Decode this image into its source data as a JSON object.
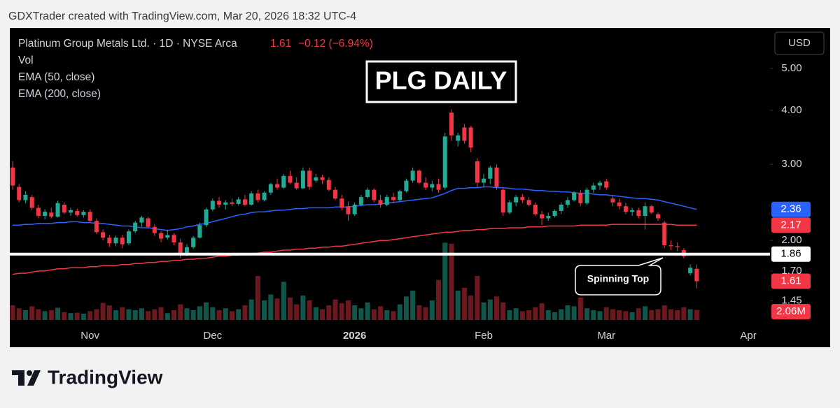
{
  "attribution": "GDXTrader created with TradingView.com, Mar 20, 2026 18:32 UTC-4",
  "brand": "TradingView",
  "chart_data": {
    "type": "candlestick",
    "title": "PLG DAILY",
    "symbol": "Platinum Group Metals Ltd. · 1D · NYSE Arca",
    "change": "−0.12 (−6.94%)",
    "currency": "USD",
    "annotation": "Spinning Top",
    "log_scale": true,
    "grid": false,
    "up_color": "#22ab94",
    "down_color": "#f23645",
    "ylim": [
      1.31,
      6.2
    ],
    "yticks": [
      {
        "value": 5,
        "label": "5.00"
      },
      {
        "value": 4,
        "label": "4.00"
      },
      {
        "value": 3,
        "label": "3.00"
      },
      {
        "value": 2,
        "label": "2.00"
      },
      {
        "value": 1.7,
        "label": "1.70"
      },
      {
        "value": 1.45,
        "label": "1.45"
      }
    ],
    "categories": [
      null,
      null,
      null,
      null,
      null,
      null,
      null,
      null,
      null,
      null,
      null,
      null,
      "Nov",
      null,
      null,
      null,
      null,
      null,
      null,
      null,
      null,
      null,
      null,
      null,
      null,
      null,
      null,
      null,
      null,
      null,
      null,
      "Dec",
      null,
      null,
      null,
      null,
      null,
      null,
      null,
      null,
      null,
      null,
      null,
      null,
      null,
      null,
      null,
      null,
      null,
      null,
      null,
      null,
      null,
      "2026",
      null,
      null,
      null,
      null,
      null,
      null,
      null,
      null,
      null,
      null,
      null,
      null,
      null,
      null,
      null,
      null,
      null,
      null,
      null,
      "Feb",
      null,
      null,
      null,
      null,
      null,
      null,
      null,
      null,
      null,
      null,
      null,
      null,
      null,
      null,
      null,
      null,
      null,
      null,
      "Mar",
      null,
      null,
      null,
      null,
      null,
      null,
      null,
      null,
      null,
      null,
      null,
      null,
      null,
      null,
      null,
      null,
      null,
      null,
      null,
      null,
      null,
      "Apr"
    ],
    "open": [
      2.95,
      2.66,
      2.48,
      2.52,
      2.38,
      2.28,
      2.32,
      2.27,
      2.42,
      2.32,
      2.34,
      2.29,
      2.33,
      2.22,
      2.09,
      2.03,
      1.97,
      2.03,
      1.97,
      2.1,
      2.2,
      2.25,
      2.15,
      2.08,
      2.03,
      2.06,
      1.98,
      1.86,
      1.93,
      2.03,
      2.17,
      2.36,
      2.47,
      2.42,
      2.45,
      2.43,
      2.49,
      2.42,
      2.57,
      2.48,
      2.58,
      2.7,
      2.65,
      2.82,
      2.72,
      2.64,
      2.9,
      2.75,
      2.8,
      2.76,
      2.62,
      2.5,
      2.4,
      2.3,
      2.42,
      2.52,
      2.62,
      2.48,
      2.42,
      2.52,
      2.48,
      2.6,
      2.75,
      2.9,
      2.72,
      2.65,
      2.7,
      2.65,
      3.95,
      3.4,
      3.65,
      3.65,
      3.05,
      2.72,
      2.78,
      2.95,
      2.62,
      2.32,
      2.45,
      2.52,
      2.48,
      2.42,
      2.3,
      2.25,
      2.28,
      2.34,
      2.42,
      2.48,
      2.58,
      2.44,
      2.62,
      2.68,
      2.74,
      2.5,
      2.45,
      2.4,
      2.33,
      2.35,
      2.28,
      2.4,
      2.3,
      2.2,
      1.95,
      1.94,
      1.9,
      1.68,
      1.72,
      null,
      null,
      null,
      null,
      null,
      null,
      null,
      null
    ],
    "high": [
      3.05,
      2.7,
      2.6,
      2.55,
      2.42,
      2.36,
      2.38,
      2.47,
      2.45,
      2.38,
      2.37,
      2.35,
      2.36,
      2.25,
      2.12,
      2.06,
      2.05,
      2.06,
      2.12,
      2.22,
      2.28,
      2.27,
      2.18,
      2.1,
      2.12,
      2.08,
      2.02,
      1.96,
      2.05,
      2.2,
      2.38,
      2.5,
      2.52,
      2.48,
      2.5,
      2.52,
      2.55,
      2.6,
      2.62,
      2.6,
      2.72,
      2.78,
      2.85,
      2.9,
      2.8,
      2.95,
      2.95,
      2.85,
      2.84,
      2.8,
      2.66,
      2.55,
      2.46,
      2.45,
      2.55,
      2.65,
      2.64,
      2.55,
      2.55,
      2.58,
      2.62,
      2.78,
      2.95,
      2.92,
      2.8,
      2.75,
      2.78,
      3.55,
      4.02,
      3.55,
      3.72,
      3.68,
      3.1,
      2.85,
      2.98,
      3.0,
      2.65,
      2.48,
      2.55,
      2.56,
      2.52,
      2.45,
      2.34,
      2.32,
      2.36,
      2.45,
      2.52,
      2.6,
      2.62,
      2.65,
      2.72,
      2.75,
      2.78,
      2.55,
      2.5,
      2.44,
      2.38,
      2.38,
      2.45,
      2.42,
      2.32,
      2.22,
      2.0,
      1.98,
      1.92,
      1.76,
      1.76,
      null,
      null,
      null,
      null,
      null,
      null,
      null,
      null
    ],
    "low": [
      2.62,
      2.45,
      2.44,
      2.35,
      2.25,
      2.24,
      2.25,
      2.26,
      2.3,
      2.28,
      2.27,
      2.26,
      2.2,
      2.07,
      2.0,
      1.93,
      1.94,
      1.92,
      1.95,
      2.08,
      2.15,
      2.13,
      2.05,
      1.98,
      2.01,
      1.95,
      1.82,
      1.84,
      1.91,
      2.02,
      2.15,
      2.34,
      2.38,
      2.36,
      2.4,
      2.41,
      2.4,
      2.41,
      2.45,
      2.46,
      2.55,
      2.62,
      2.63,
      2.7,
      2.62,
      2.63,
      2.62,
      2.72,
      2.7,
      2.6,
      2.48,
      2.35,
      2.22,
      2.28,
      2.4,
      2.5,
      2.45,
      2.38,
      2.4,
      2.44,
      2.46,
      2.58,
      2.72,
      2.7,
      2.62,
      2.6,
      2.58,
      2.62,
      3.4,
      3.3,
      3.35,
      3.2,
      2.65,
      2.65,
      2.7,
      2.62,
      2.28,
      2.3,
      2.4,
      2.44,
      2.4,
      2.28,
      2.17,
      2.22,
      2.26,
      2.3,
      2.38,
      2.46,
      2.4,
      2.42,
      2.58,
      2.62,
      2.62,
      2.4,
      2.36,
      2.3,
      2.28,
      2.25,
      2.12,
      2.3,
      2.22,
      1.92,
      1.9,
      1.89,
      1.82,
      1.66,
      1.55,
      null,
      null,
      null,
      null,
      null,
      null,
      null,
      null
    ],
    "close": [
      2.68,
      2.48,
      2.55,
      2.38,
      2.28,
      2.33,
      2.27,
      2.44,
      2.32,
      2.35,
      2.29,
      2.33,
      2.22,
      2.09,
      2.03,
      1.97,
      2.03,
      1.96,
      2.1,
      2.2,
      2.26,
      2.15,
      2.08,
      2.02,
      2.06,
      1.98,
      1.86,
      1.93,
      2.03,
      2.17,
      2.36,
      2.47,
      2.42,
      2.45,
      2.43,
      2.49,
      2.42,
      2.57,
      2.48,
      2.58,
      2.7,
      2.65,
      2.82,
      2.72,
      2.64,
      2.9,
      2.66,
      2.8,
      2.76,
      2.62,
      2.5,
      2.38,
      2.3,
      2.42,
      2.52,
      2.62,
      2.48,
      2.42,
      2.52,
      2.48,
      2.6,
      2.75,
      2.9,
      2.72,
      2.65,
      2.7,
      2.62,
      3.48,
      3.5,
      3.5,
      3.4,
      3.28,
      2.72,
      2.78,
      2.95,
      2.66,
      2.32,
      2.45,
      2.52,
      2.48,
      2.42,
      2.3,
      2.25,
      2.28,
      2.34,
      2.42,
      2.48,
      2.58,
      2.44,
      2.62,
      2.68,
      2.72,
      2.65,
      2.45,
      2.4,
      2.33,
      2.35,
      2.28,
      2.4,
      2.32,
      2.25,
      1.95,
      1.94,
      1.93,
      1.84,
      1.73,
      1.61,
      null,
      null,
      null,
      null,
      null,
      null,
      null,
      null
    ],
    "volume": {
      "name": "Vol",
      "color": "#f23645",
      "values": [
        3000000,
        2400000,
        2000000,
        2800000,
        2200000,
        1800000,
        2000000,
        2500000,
        1600000,
        1400000,
        1500000,
        1300000,
        1800000,
        2200000,
        3500000,
        3000000,
        2000000,
        2600000,
        2200000,
        2000000,
        2400000,
        1800000,
        2200000,
        2600000,
        1400000,
        2000000,
        3200000,
        2400000,
        2000000,
        2800000,
        3600000,
        2600000,
        2000000,
        2400000,
        1800000,
        2200000,
        3000000,
        4200000,
        9000000,
        4000000,
        5200000,
        4400000,
        7800000,
        4600000,
        3200000,
        5000000,
        4000000,
        2600000,
        2200000,
        3000000,
        4200000,
        3400000,
        4000000,
        3000000,
        2400000,
        3600000,
        2200000,
        2800000,
        2000000,
        1800000,
        3200000,
        4800000,
        6000000,
        3000000,
        2600000,
        4000000,
        8200000,
        15800000,
        15600000,
        6000000,
        6600000,
        5000000,
        9000000,
        3600000,
        4200000,
        4800000,
        3600000,
        2000000,
        2400000,
        1800000,
        2000000,
        2600000,
        3400000,
        2000000,
        1600000,
        2200000,
        3000000,
        2800000,
        4600000,
        2400000,
        2000000,
        1800000,
        2600000,
        2200000,
        2000000,
        1800000,
        1600000,
        2400000,
        2800000,
        2000000,
        2200000,
        3000000,
        2200000,
        2000000,
        2600000,
        2200000,
        2060000,
        null,
        null,
        null,
        null,
        null,
        null,
        null,
        null
      ],
      "value_labels": [
        null,
        null,
        null,
        null,
        null,
        null,
        null,
        null,
        null,
        null,
        null,
        null,
        null,
        null,
        null,
        null,
        null,
        null,
        null,
        null,
        null,
        null,
        null,
        null,
        null,
        null,
        null,
        null,
        null,
        null,
        null,
        null,
        null,
        null,
        null,
        null,
        null,
        null,
        null,
        null,
        null,
        null,
        null,
        null,
        null,
        null,
        null,
        null,
        null,
        null,
        null,
        null,
        null,
        null,
        null,
        null,
        null,
        null,
        null,
        null,
        null,
        null,
        null,
        null,
        null,
        null,
        null,
        null,
        null,
        null,
        null,
        null,
        null,
        null,
        null,
        null,
        null,
        null,
        null,
        null,
        null,
        null,
        null,
        null,
        null,
        null,
        null,
        null,
        null,
        null,
        null,
        null,
        null,
        null,
        null,
        null,
        null,
        null,
        null,
        null,
        null,
        null,
        null,
        null,
        null,
        null,
        "2.06M",
        null,
        null,
        null,
        null,
        null,
        null,
        null,
        null
      ]
    },
    "series": [
      {
        "name": "EMA (50, close)",
        "color": "#2962ff",
        "values": [
          2.17,
          2.17,
          2.18,
          2.18,
          2.19,
          2.19,
          2.19,
          2.2,
          2.2,
          2.21,
          2.21,
          2.2,
          2.2,
          2.19,
          2.19,
          2.18,
          2.17,
          2.16,
          2.16,
          2.15,
          2.14,
          2.14,
          2.13,
          2.12,
          2.11,
          2.12,
          2.13,
          2.15,
          2.16,
          2.18,
          2.19,
          2.21,
          2.23,
          2.25,
          2.27,
          2.29,
          2.3,
          2.32,
          2.33,
          2.33,
          2.34,
          2.35,
          2.35,
          2.36,
          2.37,
          2.37,
          2.38,
          2.38,
          2.38,
          2.38,
          2.39,
          2.39,
          2.39,
          2.4,
          2.41,
          2.42,
          2.42,
          2.43,
          2.44,
          2.45,
          2.46,
          2.47,
          2.48,
          2.49,
          2.5,
          2.51,
          2.54,
          2.57,
          2.61,
          2.64,
          2.64,
          2.65,
          2.65,
          2.66,
          2.66,
          2.65,
          2.65,
          2.64,
          2.63,
          2.63,
          2.62,
          2.61,
          2.61,
          2.6,
          2.6,
          2.59,
          2.59,
          2.58,
          2.57,
          2.57,
          2.56,
          2.55,
          2.55,
          2.54,
          2.53,
          2.52,
          2.51,
          2.5,
          2.5,
          2.49,
          2.48,
          2.46,
          2.44,
          2.42,
          2.4,
          2.38,
          2.36,
          null,
          null,
          null,
          null,
          null,
          null,
          null,
          null
        ]
      },
      {
        "name": "EMA (200, close)",
        "color": "#f23645",
        "values": [
          1.67,
          1.68,
          1.68,
          1.69,
          1.7,
          1.7,
          1.71,
          1.72,
          1.72,
          1.73,
          1.73,
          1.73,
          1.74,
          1.74,
          1.75,
          1.75,
          1.75,
          1.76,
          1.76,
          1.77,
          1.77,
          1.78,
          1.78,
          1.79,
          1.79,
          1.8,
          1.8,
          1.81,
          1.81,
          1.82,
          1.82,
          1.83,
          1.84,
          1.84,
          1.85,
          1.85,
          1.86,
          1.86,
          1.87,
          1.88,
          1.88,
          1.89,
          1.9,
          1.9,
          1.91,
          1.91,
          1.92,
          1.92,
          1.93,
          1.93,
          1.94,
          1.94,
          1.95,
          1.96,
          1.97,
          1.98,
          1.99,
          2.0,
          2.0,
          2.01,
          2.02,
          2.03,
          2.04,
          2.05,
          2.06,
          2.07,
          2.08,
          2.09,
          2.09,
          2.1,
          2.11,
          2.11,
          2.12,
          2.12,
          2.13,
          2.13,
          2.13,
          2.14,
          2.14,
          2.14,
          2.15,
          2.15,
          2.15,
          2.16,
          2.16,
          2.16,
          2.16,
          2.16,
          2.17,
          2.17,
          2.17,
          2.17,
          2.17,
          2.18,
          2.18,
          2.18,
          2.18,
          2.18,
          2.18,
          2.18,
          2.18,
          2.18,
          2.18,
          2.17,
          2.17,
          2.17,
          2.17,
          null,
          null,
          null,
          null,
          null,
          null,
          null,
          null
        ]
      }
    ],
    "hline": {
      "value": 1.86,
      "color": "#ffffff"
    }
  }
}
